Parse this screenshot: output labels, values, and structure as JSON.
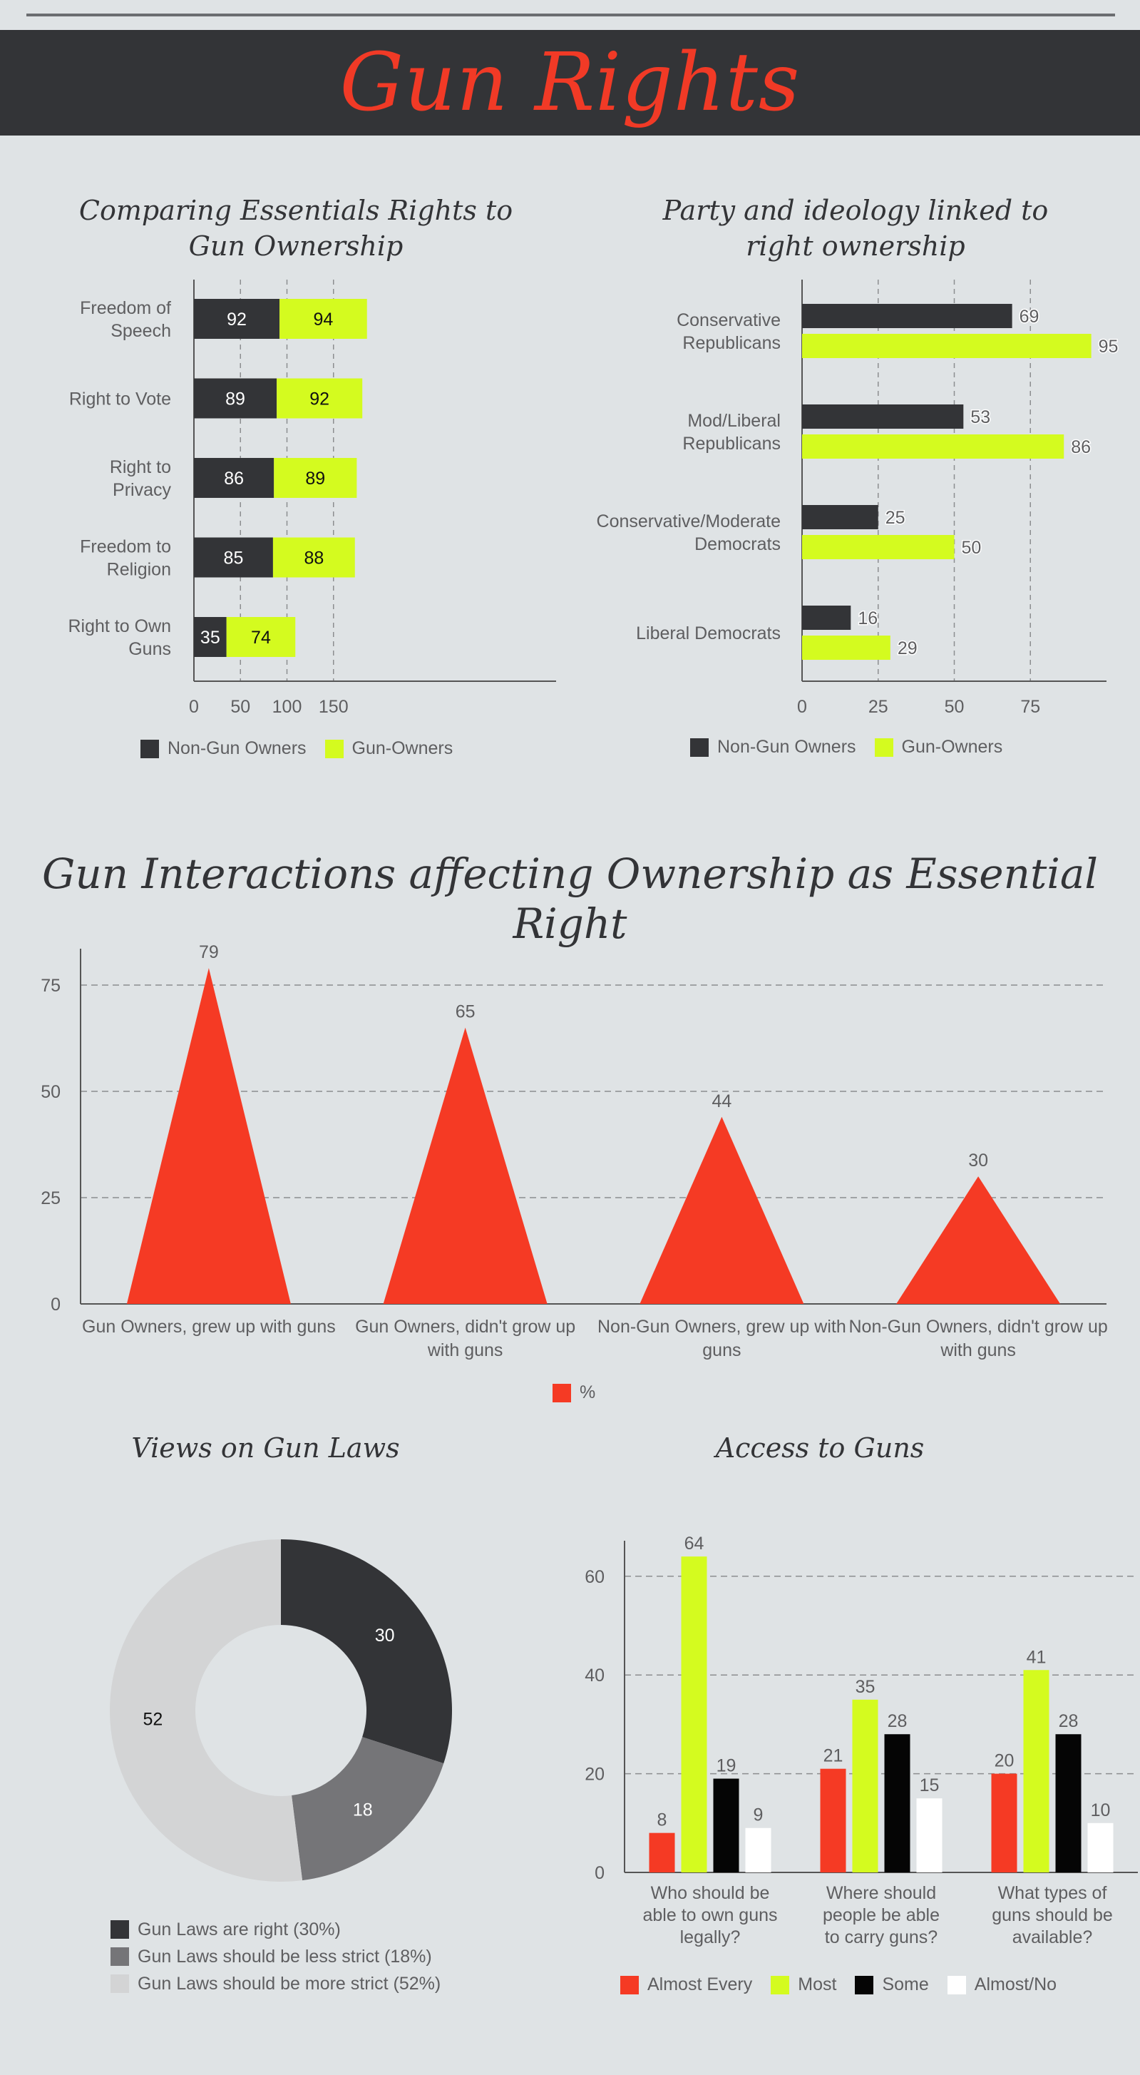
{
  "page": {
    "title": "Gun Rights"
  },
  "colors": {
    "dark": "#333437",
    "lime": "#d4fb1f",
    "red": "#f53a24",
    "gray": "#757578",
    "light": "#d3d4d5",
    "black": "#050505",
    "white": "#ffffff",
    "text": "#5e5e60"
  },
  "chart_data": [
    {
      "type": "bar",
      "orientation": "horizontal",
      "stacked": true,
      "title": "Comparing Essentials Rights to Gun Ownership",
      "categories": [
        "Freedom of Speech",
        "Right to Vote",
        "Right to Privacy",
        "Freedom to Religion",
        "Right to Own Guns"
      ],
      "series": [
        {
          "name": "Non-Gun Owners",
          "color": "#333437",
          "values": [
            92,
            89,
            86,
            85,
            35
          ]
        },
        {
          "name": "Gun-Owners",
          "color": "#d4fb1f",
          "values": [
            94,
            92,
            89,
            88,
            74
          ]
        }
      ],
      "xticks": [
        "0",
        "50",
        "100",
        "150"
      ],
      "xlim": [
        0,
        195
      ]
    },
    {
      "type": "bar",
      "orientation": "horizontal",
      "title": "Party and ideology linked to right ownership",
      "categories": [
        "Conservative Republicans",
        "Mod/Liberal Republicans",
        "Conservative/Moderate Democrats",
        "Liberal Democrats"
      ],
      "series": [
        {
          "name": "Non-Gun Owners",
          "color": "#333437",
          "values": [
            69,
            53,
            25,
            16
          ]
        },
        {
          "name": "Gun-Owners",
          "color": "#d4fb1f",
          "values": [
            95,
            86,
            50,
            29
          ]
        }
      ],
      "xticks": [
        "0",
        "25",
        "50",
        "75"
      ],
      "xlim": [
        0,
        100
      ]
    },
    {
      "type": "bar",
      "shape": "triangle",
      "title": "Gun Interactions affecting Ownership as Essential Right",
      "categories": [
        "Gun Owners, grew up with guns",
        "Gun Owners, didn't grow up with guns",
        "Non-Gun Owners, grew up with guns",
        "Non-Gun Owners, didn't grow up with guns"
      ],
      "series": [
        {
          "name": "%",
          "color": "#f53a24",
          "values": [
            79,
            65,
            44,
            30
          ]
        }
      ],
      "yticks": [
        "0",
        "25",
        "50",
        "75"
      ],
      "ylim": [
        0,
        83
      ]
    },
    {
      "type": "pie",
      "donut": true,
      "title": "Views on Gun Laws",
      "slices": [
        {
          "label": "Gun Laws are right (30%)",
          "value": 30,
          "color": "#333437",
          "text_color": "#ffffff"
        },
        {
          "label": "Gun Laws should be less strict (18%)",
          "value": 18,
          "color": "#757578",
          "text_color": "#ffffff"
        },
        {
          "label": "Gun Laws should be more strict (52%)",
          "value": 52,
          "color": "#d3d4d5",
          "text_color": "#111111"
        }
      ]
    },
    {
      "type": "bar",
      "title": "Access to Guns",
      "categories": [
        "Who should be able to own guns legally?",
        "Where should people be able to carry guns?",
        "What types of guns should be available?"
      ],
      "series": [
        {
          "name": "Almost Every",
          "color": "#f53a24",
          "values": [
            8,
            21,
            20
          ]
        },
        {
          "name": "Most",
          "color": "#d4fb1f",
          "values": [
            64,
            35,
            41
          ]
        },
        {
          "name": "Some",
          "color": "#050505",
          "values": [
            19,
            28,
            28
          ]
        },
        {
          "name": "Almost/No",
          "color": "#ffffff",
          "values": [
            9,
            15,
            10
          ]
        }
      ],
      "yticks": [
        "0",
        "20",
        "40",
        "60"
      ],
      "ylim": [
        0,
        67
      ]
    }
  ]
}
